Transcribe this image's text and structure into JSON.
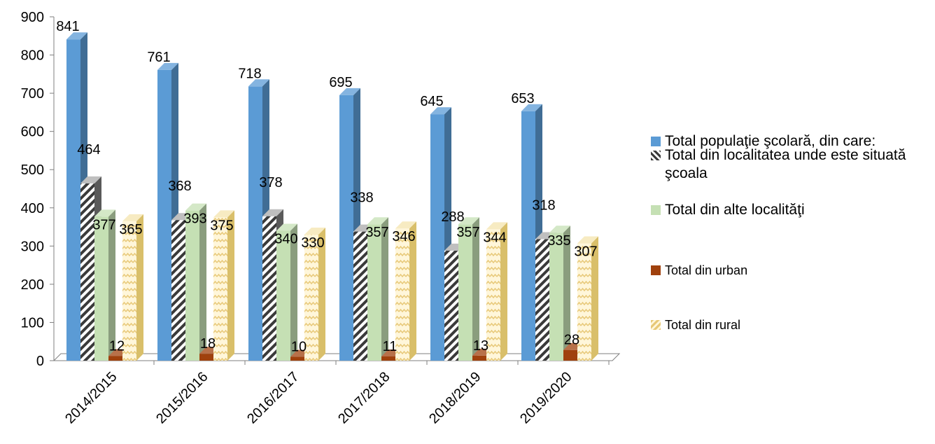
{
  "chart_data": {
    "type": "bar",
    "title": "",
    "xlabel": "",
    "ylabel": "",
    "ylim": [
      0,
      900
    ],
    "yticks": [
      0,
      100,
      200,
      300,
      400,
      500,
      600,
      700,
      800,
      900
    ],
    "categories": [
      "2014/2015",
      "2015/2016",
      "2016/2017",
      "2017/2018",
      "2018/2019",
      "2019/2020"
    ],
    "series": [
      {
        "name": "Total populaţie şcolară, din care:",
        "values": [
          841,
          761,
          718,
          695,
          645,
          653
        ],
        "color": "#5B9BD5",
        "pattern": "solid"
      },
      {
        "name": "Total din localitatea unde este situată şcoala",
        "values": [
          464,
          368,
          378,
          338,
          288,
          318
        ],
        "color": "#404040",
        "pattern": "diagonal-stripes"
      },
      {
        "name": "Total din alte localităţi",
        "values": [
          377,
          393,
          340,
          357,
          357,
          335
        ],
        "color": "#C5E0B4",
        "pattern": "solid"
      },
      {
        "name": "Total din urban",
        "values": [
          12,
          18,
          10,
          11,
          13,
          28
        ],
        "color": "#A0410D",
        "pattern": "solid"
      },
      {
        "name": "Total din  rural",
        "values": [
          365,
          375,
          330,
          346,
          344,
          307
        ],
        "color": "#F2E0A6",
        "pattern": "zigzag"
      }
    ],
    "grid": false,
    "legend_position": "right",
    "three_d": true
  }
}
